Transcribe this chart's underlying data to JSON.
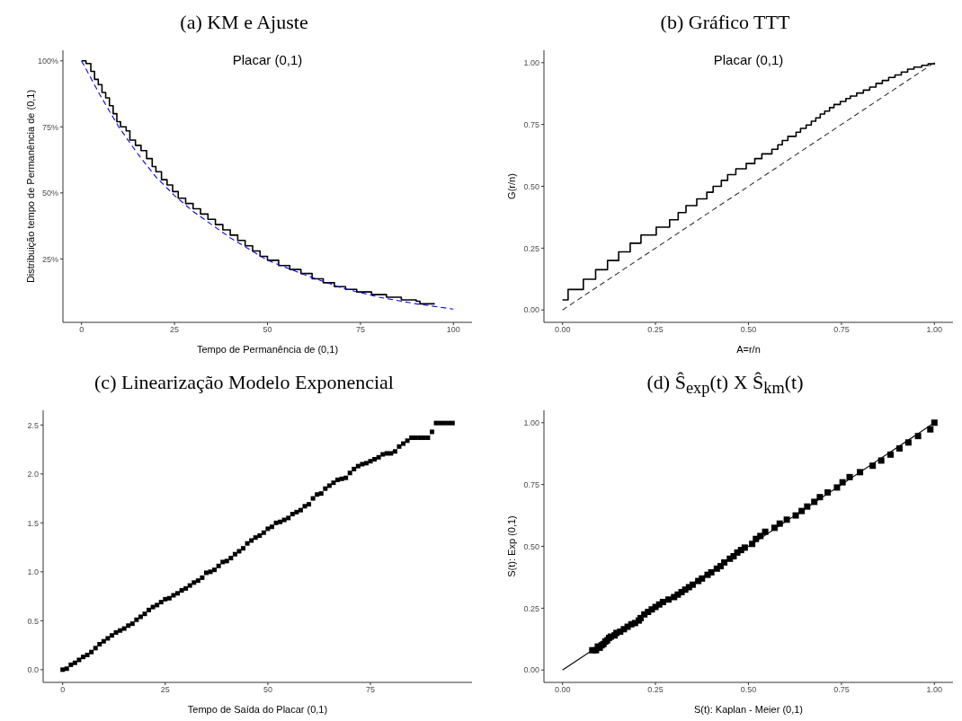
{
  "chart_data": [
    {
      "type": "step",
      "title": "(a) KM e Ajuste",
      "xlabel": "Tempo de Permanência de (0,1)",
      "ylabel": "Distribuição tempo de Permanência de (0,1)",
      "annotations": [
        "Placar (0,1)"
      ],
      "xlim": [
        -5,
        105
      ],
      "xticks": [
        0,
        25,
        50,
        75,
        100
      ],
      "ylim": [
        1,
        104
      ],
      "yticks": [
        {
          "value": 25,
          "label": "25%"
        },
        {
          "value": 50,
          "label": "50%"
        },
        {
          "value": 75,
          "label": "75%"
        },
        {
          "value": 100,
          "label": "100%"
        }
      ],
      "series": [
        {
          "color": "#000000",
          "x": [
            0,
            1.2,
            2.5,
            3.5,
            4.5,
            5.5,
            6.5,
            7.5,
            8.5,
            9.5,
            10.5,
            12,
            13,
            14.5,
            16,
            17.5,
            19,
            20,
            21.5,
            23,
            24.5,
            26,
            28,
            30,
            32,
            34,
            36,
            38,
            40,
            42,
            44,
            46,
            48,
            50,
            53,
            56,
            59,
            62,
            65,
            68,
            71,
            74,
            78,
            82,
            86,
            90,
            91,
            95
          ],
          "values": [
            100,
            99,
            96,
            93,
            91,
            88,
            86,
            83,
            80,
            77,
            75,
            73.5,
            70,
            68,
            66,
            63,
            60,
            58,
            55,
            53,
            50.5,
            48,
            46,
            44,
            42,
            40,
            38,
            36,
            34,
            32,
            30,
            28,
            26,
            24.5,
            22.5,
            21,
            19.5,
            17.5,
            16,
            14.5,
            13.5,
            12.5,
            11.5,
            10.5,
            9.5,
            9,
            8,
            8
          ]
        },
        {
          "type": "line",
          "color": "#0000ff",
          "line_style": "dashed",
          "x": [
            0,
            5,
            10,
            15,
            20,
            25,
            30,
            40,
            50,
            60,
            70,
            80,
            90,
            100
          ],
          "values": [
            100,
            87,
            75,
            65,
            56,
            49,
            43,
            33,
            24.5,
            19,
            14,
            10.5,
            8,
            6
          ]
        }
      ]
    },
    {
      "type": "step",
      "title": "(b) Gráfico TTT",
      "xlabel": "A=r/n",
      "ylabel": "G(r/n)",
      "annotations": [
        "Placar (0,1)"
      ],
      "xlim": [
        -0.05,
        1.05
      ],
      "xticks": [
        {
          "value": 0,
          "label": "0.00"
        },
        0.25,
        {
          "value": 0.5,
          "label": "0.50"
        },
        0.75,
        {
          "value": 1,
          "label": "1.00"
        }
      ],
      "ylim": [
        -0.05,
        1.05
      ],
      "yticks": [
        {
          "value": 0,
          "label": "0.00"
        },
        0.25,
        {
          "value": 0.5,
          "label": "0.50"
        },
        0.75,
        {
          "value": 1,
          "label": "1.00"
        }
      ],
      "series": [
        {
          "color": "#000000",
          "x": [
            0,
            0.015,
            0.056,
            0.089,
            0.121,
            0.151,
            0.182,
            0.211,
            0.252,
            0.288,
            0.311,
            0.332,
            0.361,
            0.388,
            0.405,
            0.427,
            0.444,
            0.466,
            0.494,
            0.517,
            0.536,
            0.563,
            0.579,
            0.591,
            0.606,
            0.628,
            0.64,
            0.655,
            0.669,
            0.681,
            0.693,
            0.705,
            0.718,
            0.73,
            0.747,
            0.762,
            0.774,
            0.791,
            0.809,
            0.826,
            0.843,
            0.86,
            0.877,
            0.894,
            0.911,
            0.928,
            0.945,
            0.966,
            0.983,
            1
          ],
          "values": [
            0.041,
            0.083,
            0.124,
            0.163,
            0.2,
            0.235,
            0.27,
            0.303,
            0.335,
            0.365,
            0.394,
            0.422,
            0.449,
            0.476,
            0.5,
            0.524,
            0.547,
            0.571,
            0.592,
            0.612,
            0.631,
            0.65,
            0.668,
            0.685,
            0.702,
            0.719,
            0.734,
            0.748,
            0.763,
            0.777,
            0.792,
            0.804,
            0.818,
            0.831,
            0.843,
            0.855,
            0.865,
            0.877,
            0.889,
            0.901,
            0.916,
            0.928,
            0.94,
            0.95,
            0.962,
            0.974,
            0.982,
            0.989,
            0.995,
            1
          ]
        },
        {
          "type": "line",
          "color": "#333333",
          "line_style": "dashed",
          "x": [
            0,
            1
          ],
          "values": [
            0,
            1
          ]
        }
      ]
    },
    {
      "type": "scatter",
      "title": "(c) Linearização Modelo Exponencial",
      "xlabel": "Tempo de Saída do Placar (0,1)",
      "xlim": [
        -4.75,
        99.75
      ],
      "xticks": [
        0,
        25,
        50,
        75
      ],
      "ylim": [
        -0.13,
        2.65
      ],
      "yticks": [
        {
          "value": 0,
          "label": "0.0"
        },
        0.5,
        {
          "value": 1,
          "label": "1.0"
        },
        1.5,
        {
          "value": 2,
          "label": "2.0"
        },
        2.5
      ],
      "series": [
        {
          "color": "#000000",
          "marker": "square",
          "x": [
            0,
            1,
            2,
            3,
            4,
            5,
            6,
            7,
            8,
            9,
            10,
            11,
            12,
            13,
            14,
            15,
            16,
            17,
            18,
            19,
            20,
            21,
            22,
            23,
            24,
            25,
            26,
            27,
            28,
            29,
            30,
            31,
            32,
            33,
            34,
            35,
            36,
            37,
            38,
            39,
            40,
            41,
            42,
            43,
            44,
            45,
            46,
            47,
            48,
            49,
            50,
            51,
            52,
            53,
            54,
            55,
            56,
            57,
            58,
            59,
            60,
            61,
            62,
            63,
            64,
            65,
            66,
            67,
            68,
            69,
            70,
            71,
            72,
            73,
            74,
            75,
            76,
            77,
            78,
            79,
            80,
            81,
            82,
            83,
            84,
            85,
            86,
            87,
            88,
            89,
            90,
            91,
            92,
            93,
            94,
            95
          ],
          "values": [
            0,
            0.01,
            0.05,
            0.07,
            0.1,
            0.13,
            0.15,
            0.18,
            0.22,
            0.26,
            0.29,
            0.32,
            0.35,
            0.38,
            0.4,
            0.42,
            0.45,
            0.47,
            0.51,
            0.54,
            0.57,
            0.61,
            0.64,
            0.66,
            0.69,
            0.72,
            0.73,
            0.76,
            0.78,
            0.81,
            0.83,
            0.86,
            0.89,
            0.91,
            0.94,
            0.99,
            1,
            1.02,
            1.06,
            1.1,
            1.11,
            1.14,
            1.18,
            1.21,
            1.24,
            1.29,
            1.32,
            1.35,
            1.37,
            1.4,
            1.44,
            1.46,
            1.5,
            1.51,
            1.53,
            1.55,
            1.59,
            1.61,
            1.63,
            1.67,
            1.69,
            1.75,
            1.79,
            1.8,
            1.85,
            1.88,
            1.91,
            1.94,
            1.95,
            1.96,
            2.01,
            2.05,
            2.08,
            2.1,
            2.11,
            2.13,
            2.15,
            2.17,
            2.2,
            2.21,
            2.21,
            2.23,
            2.28,
            2.31,
            2.34,
            2.37,
            2.37,
            2.37,
            2.37,
            2.37,
            2.43,
            2.52,
            2.52,
            2.52,
            2.52,
            2.52
          ]
        }
      ]
    },
    {
      "type": "scatter",
      "title": "(d) Ŝ$_{exp}$(t) X Ŝ$_{km}$(t)",
      "xlabel": "S(t): Kaplan - Meier (0,1)",
      "ylabel": "S(t): Exp (0,1)",
      "xlim": [
        -0.05,
        1.05
      ],
      "xticks": [
        {
          "value": 0,
          "label": "0.00"
        },
        0.25,
        {
          "value": 0.5,
          "label": "0.50"
        },
        0.75,
        {
          "value": 1,
          "label": "1.00"
        }
      ],
      "ylim": [
        -0.05,
        1.05
      ],
      "yticks": [
        {
          "value": 0,
          "label": "0.00"
        },
        0.25,
        {
          "value": 0.5,
          "label": "0.50"
        },
        0.75,
        {
          "value": 1,
          "label": "1.00"
        }
      ],
      "series": [
        {
          "type": "line",
          "color": "#000000",
          "x": [
            0,
            1
          ],
          "values": [
            0,
            1
          ]
        },
        {
          "color": "#000000",
          "marker": "square",
          "x": [
            0.08,
            0.09,
            0.095,
            0.1,
            0.105,
            0.11,
            0.115,
            0.12,
            0.125,
            0.13,
            0.14,
            0.145,
            0.155,
            0.165,
            0.175,
            0.185,
            0.195,
            0.205,
            0.21,
            0.22,
            0.23,
            0.24,
            0.25,
            0.26,
            0.27,
            0.285,
            0.3,
            0.31,
            0.32,
            0.33,
            0.34,
            0.35,
            0.365,
            0.375,
            0.39,
            0.4,
            0.415,
            0.425,
            0.435,
            0.45,
            0.46,
            0.47,
            0.48,
            0.49,
            0.51,
            0.52,
            0.532,
            0.545,
            0.57,
            0.584,
            0.603,
            0.627,
            0.643,
            0.658,
            0.677,
            0.692,
            0.713,
            0.738,
            0.753,
            0.772,
            0.8,
            0.834,
            0.857,
            0.882,
            0.906,
            0.93,
            0.956,
            0.989,
            1
          ],
          "values": [
            0.08,
            0.08,
            0.095,
            0.09,
            0.1,
            0.105,
            0.115,
            0.12,
            0.13,
            0.135,
            0.14,
            0.15,
            0.155,
            0.165,
            0.175,
            0.185,
            0.19,
            0.2,
            0.21,
            0.225,
            0.235,
            0.245,
            0.255,
            0.265,
            0.275,
            0.285,
            0.295,
            0.305,
            0.315,
            0.325,
            0.335,
            0.345,
            0.36,
            0.37,
            0.385,
            0.395,
            0.41,
            0.42,
            0.435,
            0.45,
            0.46,
            0.475,
            0.485,
            0.495,
            0.51,
            0.53,
            0.542,
            0.559,
            0.575,
            0.592,
            0.608,
            0.625,
            0.643,
            0.661,
            0.68,
            0.699,
            0.718,
            0.738,
            0.759,
            0.78,
            0.8,
            0.826,
            0.847,
            0.871,
            0.896,
            0.92,
            0.946,
            0.973,
            1
          ]
        }
      ]
    }
  ]
}
